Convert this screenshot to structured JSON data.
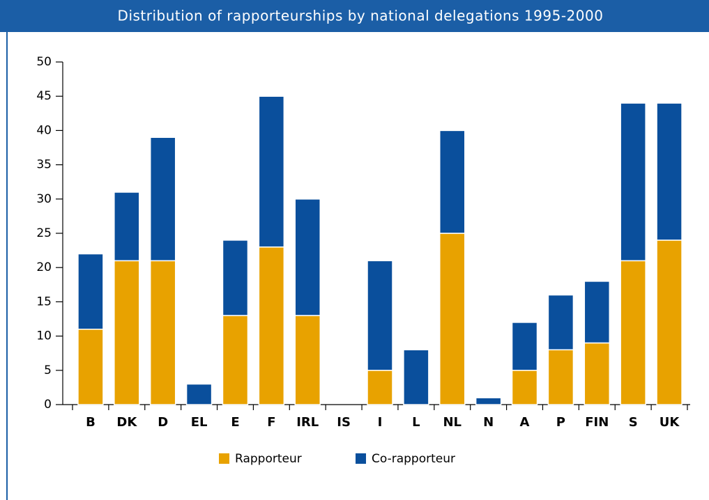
{
  "chart_data": {
    "type": "stacked_bar",
    "title": "Distribution of rapporteurships by national delegations 1995-2000",
    "categories": [
      "B",
      "DK",
      "D",
      "EL",
      "E",
      "F",
      "IRL",
      "IS",
      "I",
      "L",
      "NL",
      "N",
      "A",
      "P",
      "FIN",
      "S",
      "UK"
    ],
    "series": [
      {
        "name": "Rapporteur",
        "color": "#e8a200",
        "values": [
          11,
          21,
          21,
          0,
          13,
          23,
          13,
          0,
          5,
          0,
          25,
          0,
          5,
          8,
          9,
          21,
          24
        ]
      },
      {
        "name": "Co-rapporteur",
        "color": "#0a4f9c",
        "values": [
          11,
          10,
          18,
          3,
          11,
          22,
          17,
          0,
          16,
          8,
          15,
          1,
          7,
          8,
          9,
          23,
          20
        ]
      }
    ],
    "ylim": [
      0,
      50
    ],
    "yticks": [
      0,
      5,
      10,
      15,
      20,
      25,
      30,
      35,
      40,
      45,
      50
    ]
  }
}
